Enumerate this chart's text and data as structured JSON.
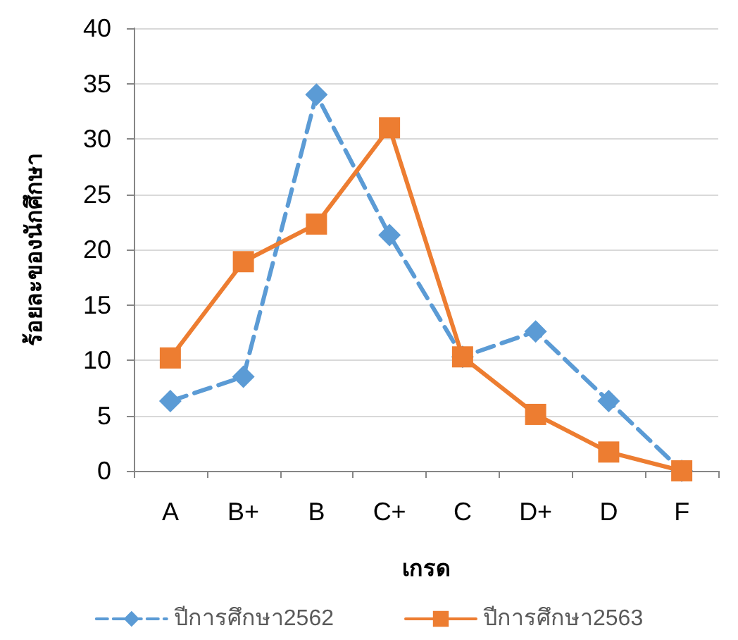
{
  "chart_data": {
    "type": "line",
    "xlabel": "เกรด",
    "ylabel": "ร้อยละของนักศึกษา",
    "categories": [
      "A",
      "B+",
      "B",
      "C+",
      "C",
      "D+",
      "D",
      "F"
    ],
    "series": [
      {
        "name": "ปีการศึกษา2562",
        "color": "#5b9bd5",
        "marker": "diamond",
        "line_style": "dashed",
        "values": [
          6.3,
          8.5,
          34,
          21.3,
          10.3,
          12.6,
          6.3,
          0
        ]
      },
      {
        "name": "ปีการศึกษา2563",
        "color": "#ed7d31",
        "marker": "square",
        "line_style": "solid",
        "values": [
          10.2,
          18.9,
          22.3,
          31,
          10.3,
          5.1,
          1.7,
          0
        ]
      }
    ],
    "ylim": [
      0,
      40
    ],
    "yticks": [
      0,
      5,
      10,
      15,
      20,
      25,
      30,
      35,
      40
    ],
    "grid": "y",
    "legend": "bottom"
  }
}
